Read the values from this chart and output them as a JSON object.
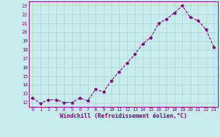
{
  "x": [
    0,
    1,
    2,
    3,
    4,
    5,
    6,
    7,
    8,
    9,
    10,
    11,
    12,
    13,
    14,
    15,
    16,
    17,
    18,
    19,
    20,
    21,
    22,
    23
  ],
  "y": [
    12.5,
    11.9,
    12.3,
    12.3,
    12.0,
    12.0,
    12.5,
    12.2,
    13.5,
    13.2,
    14.5,
    15.5,
    16.5,
    17.5,
    18.7,
    19.4,
    21.0,
    21.5,
    22.2,
    23.0,
    21.7,
    21.3,
    20.3,
    18.3
  ],
  "xlim": [
    -0.5,
    23.5
  ],
  "ylim": [
    11.5,
    23.5
  ],
  "yticks": [
    12,
    13,
    14,
    15,
    16,
    17,
    18,
    19,
    20,
    21,
    22,
    23
  ],
  "xticks": [
    0,
    1,
    2,
    3,
    4,
    5,
    6,
    7,
    8,
    9,
    10,
    11,
    12,
    13,
    14,
    15,
    16,
    17,
    18,
    19,
    20,
    21,
    22,
    23
  ],
  "xlabel": "Windchill (Refroidissement éolien,°C)",
  "line_color": "#800080",
  "marker_color": "#800080",
  "bg_color": "#c8ecec",
  "grid_color": "#aad4d4",
  "tick_label_fontsize": 5.0,
  "xlabel_fontsize": 6.0
}
